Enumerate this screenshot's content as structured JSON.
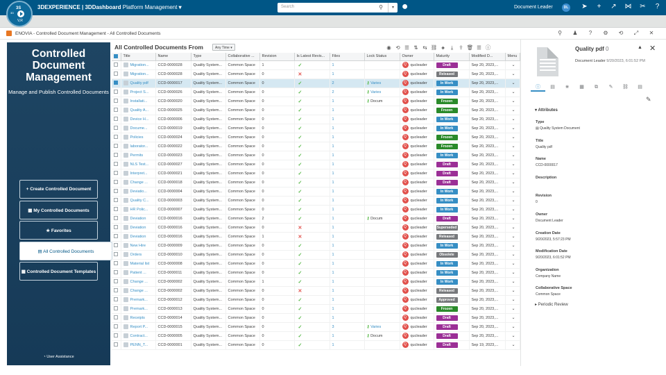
{
  "topbar": {
    "brand": "3DEXPERIENCE | 3DDashboard",
    "app": "Platform Management",
    "search_placeholder": "Search",
    "user": "Document Leader",
    "avatar_initials": "DL",
    "logo_version": "V,R",
    "logo_3d": "3D",
    "logo_ds": "3S",
    "icons": [
      "share-icon",
      "plus-icon",
      "forward-icon",
      "network-icon",
      "tools-icon",
      "help-icon"
    ],
    "icon_glyphs": [
      "➤",
      "+",
      "↗",
      "⋈",
      "✂",
      "?"
    ]
  },
  "panel": {
    "title": "ENOVIA - Controlled Document Management - All Controlled Documents",
    "tools": [
      "⚲",
      "♟",
      "?",
      "⚙",
      "⟲",
      "⤢",
      "✕"
    ]
  },
  "left": {
    "title": "Controlled Document Management",
    "subtitle": "Manage and Publish Controlled Documents",
    "buttons": [
      {
        "label": "+ Create Controlled Document"
      },
      {
        "label": "▦ My Controlled Documents"
      },
      {
        "label": "★ Favorites"
      },
      {
        "label": "▤ All Controlled Documents"
      },
      {
        "label": "▦ Controlled Document Templates"
      }
    ],
    "assistance": "◔ User Assistance"
  },
  "grid": {
    "title": "All Controlled Documents From",
    "filter": "Any Time ▾",
    "tools": [
      "◉",
      "⟲",
      "☰",
      "⇅",
      "⇆",
      "⛓",
      "⯌",
      "⤓",
      "⇪",
      "🗑",
      "☰",
      "ⓘ"
    ],
    "columns": [
      "",
      "Title",
      "Name",
      "Type",
      "Collaborative ...",
      "Revision",
      "Is Latest Revis...",
      "Files",
      "Lock Status",
      "Owner",
      "Maturity",
      "Modified D...",
      "Menu"
    ],
    "rows": [
      [
        "Migration...",
        "CCD-0000028",
        "Quality System...",
        "Common Space",
        "1",
        "y",
        "1",
        "",
        "qucleader",
        "Draft",
        "Sep 20, 2023,..."
      ],
      [
        "Migration...",
        "CCD-0000028",
        "Quality System...",
        "Common Space",
        "0",
        "n",
        "1",
        "",
        "qucleader",
        "Released",
        "Sep 20, 2023,..."
      ],
      [
        "Quality pdf",
        "CCD-0000017",
        "Quality System...",
        "Common Space",
        "0",
        "y",
        "2",
        "Varies",
        "qucleader",
        "In Work",
        "Sep 20, 2023,..."
      ],
      [
        "Project S...",
        "CCD-0000026",
        "Quality System...",
        "Common Space",
        "0",
        "y",
        "2",
        "Varies",
        "qucleader",
        "In Work",
        "Sep 20, 2023,..."
      ],
      [
        "Installati...",
        "CCD-0000020",
        "Quality System...",
        "Common Space",
        "0",
        "y",
        "1",
        "Docum",
        "qucleader",
        "Frozen",
        "Sep 20, 2023,..."
      ],
      [
        "Quality A...",
        "CCD-0000025",
        "Quality System...",
        "Common Space",
        "0",
        "y",
        "1",
        "",
        "qucleader",
        "Frozen",
        "Sep 20, 2023,..."
      ],
      [
        "Device H...",
        "CCD-0000006",
        "Quality System...",
        "Common Space",
        "0",
        "y",
        "1",
        "",
        "qucleader",
        "In Work",
        "Sep 20, 2023,..."
      ],
      [
        "Docume...",
        "CCD-0000019",
        "Quality System...",
        "Common Space",
        "0",
        "y",
        "1",
        "",
        "qucleader",
        "In Work",
        "Sep 20, 2023,..."
      ],
      [
        "Policies",
        "CCD-0000024",
        "Quality System...",
        "Common Space",
        "0",
        "y",
        "1",
        "",
        "qucleader",
        "Frozen",
        "Sep 20, 2023,..."
      ],
      [
        "laborator...",
        "CCD-0000022",
        "Quality System...",
        "Common Space",
        "0",
        "y",
        "1",
        "",
        "qucleader",
        "Frozen",
        "Sep 20, 2023,..."
      ],
      [
        "Permits",
        "CCD-0000023",
        "Quality System...",
        "Common Space",
        "0",
        "y",
        "1",
        "",
        "qucleader",
        "In Work",
        "Sep 20, 2023,..."
      ],
      [
        "NLS Test...",
        "CCD-0000027",
        "Quality System...",
        "Common Space",
        "0",
        "y",
        "1",
        "",
        "qucleader",
        "Draft",
        "Sep 20, 2023,..."
      ],
      [
        "Interpret...",
        "CCD-0000021",
        "Quality System...",
        "Common Space",
        "0",
        "y",
        "1",
        "",
        "qucleader",
        "Draft",
        "Sep 20, 2023,..."
      ],
      [
        "Change ...",
        "CCD-0000018",
        "Quality System...",
        "Common Space",
        "0",
        "y",
        "1",
        "",
        "qucleader",
        "Draft",
        "Sep 20, 2023,..."
      ],
      [
        "Deviatio...",
        "CCD-0000004",
        "Quality System...",
        "Common Space",
        "0",
        "y",
        "1",
        "",
        "qucleader",
        "In Work",
        "Sep 20, 2023,..."
      ],
      [
        "Quality C...",
        "CCD-0000003",
        "Quality System...",
        "Common Space",
        "0",
        "y",
        "1",
        "",
        "qucleader",
        "In Work",
        "Sep 20, 2023,..."
      ],
      [
        "HR Polic...",
        "CCD-0000007",
        "Quality System...",
        "Common Space",
        "0",
        "y",
        "1",
        "",
        "qucleader",
        "In Work",
        "Sep 20, 2023,..."
      ],
      [
        "Deviation",
        "CCD-0000016",
        "Quality System...",
        "Common Space",
        "2",
        "y",
        "1",
        "Docum",
        "qucleader",
        "Draft",
        "Sep 20, 2023,..."
      ],
      [
        "Deviation",
        "CCD-0000016",
        "Quality System...",
        "Common Space",
        "0",
        "n",
        "1",
        "",
        "qucleader",
        "Superseded",
        "Sep 20, 2023,..."
      ],
      [
        "Deviation",
        "CCD-0000016",
        "Quality System...",
        "Common Space",
        "1",
        "n",
        "1",
        "",
        "qucleader",
        "Released",
        "Sep 20, 2023,..."
      ],
      [
        "New Hire",
        "CCD-0000009",
        "Quality System...",
        "Common Space",
        "0",
        "y",
        "1",
        "",
        "qucleader",
        "In Work",
        "Sep 20, 2023,..."
      ],
      [
        "Orders",
        "CCD-0000010",
        "Quality System...",
        "Common Space",
        "0",
        "y",
        "1",
        "",
        "qucleader",
        "Obsolete",
        "Sep 20, 2023,..."
      ],
      [
        "Material list",
        "CCD-0000008",
        "Quality System...",
        "Common Space",
        "0",
        "y",
        "1",
        "",
        "qucleader",
        "In Work",
        "Sep 20, 2023,..."
      ],
      [
        "Patient ...",
        "CCD-0000011",
        "Quality System...",
        "Common Space",
        "0",
        "y",
        "1",
        "",
        "qucleader",
        "In Work",
        "Sep 20, 2023,..."
      ],
      [
        "Change ...",
        "CCD-0000002",
        "Quality System...",
        "Common Space",
        "1",
        "y",
        "1",
        "",
        "qucleader",
        "In Work",
        "Sep 20, 2023,..."
      ],
      [
        "Change ...",
        "CCD-0000002",
        "Quality System...",
        "Common Space",
        "0",
        "n",
        "1",
        "",
        "qucleader",
        "Released",
        "Sep 20, 2023,..."
      ],
      [
        "Premark...",
        "CCD-0000012",
        "Quality System...",
        "Common Space",
        "0",
        "y",
        "1",
        "",
        "qucleader",
        "Approved",
        "Sep 20, 2023,..."
      ],
      [
        "Premark...",
        "CCD-0000013",
        "Quality System...",
        "Common Space",
        "0",
        "y",
        "1",
        "",
        "qucleader",
        "Frozen",
        "Sep 20, 2023,..."
      ],
      [
        "Receipts",
        "CCD-0000014",
        "Quality System...",
        "Common Space",
        "0",
        "y",
        "1",
        "",
        "qucleader",
        "Draft",
        "Sep 20, 2023,..."
      ],
      [
        "Report P...",
        "CCD-0000015",
        "Quality System...",
        "Common Space",
        "0",
        "y",
        "3",
        "Varies",
        "qucleader",
        "Draft",
        "Sep 20, 2023,..."
      ],
      [
        "Contract...",
        "CCD-0000005",
        "Quality System...",
        "Common Space",
        "0",
        "y",
        "1",
        "Docum",
        "qucleader",
        "Draft",
        "Sep 20, 2023,..."
      ],
      [
        "PENN_T...",
        "CCD-0000001",
        "Quality System...",
        "Common Space",
        "0",
        "y",
        "1",
        "",
        "qucleader",
        "Draft",
        "Sep 19, 2023,..."
      ]
    ],
    "selected_row": 2,
    "maturity_colors": {
      "Draft": "#9b2f96",
      "Released": "#77797c",
      "In Work": "#368ec4",
      "Frozen": "#2a8a2a",
      "Superseded": "#77797c",
      "Obsolete": "#77797c",
      "Approved": "#77797c"
    }
  },
  "details": {
    "title": "Quality pdf",
    "revision": "0",
    "owner_line": "Document Leader",
    "date_line": "9/20/2023, 6:01:52 PM",
    "section": "▾  Attributes",
    "attributes": [
      {
        "k": "Type",
        "v": "▤ Quality System Document"
      },
      {
        "k": "Title",
        "v": "Quality pdf"
      },
      {
        "k": "Name",
        "v": "CCD-0000017"
      },
      {
        "k": "Description",
        "v": ""
      },
      {
        "k": "Revision",
        "v": "0"
      },
      {
        "k": "Owner",
        "v": "Document Leader"
      },
      {
        "k": "Creation Date",
        "v": "9/20/2023, 5:57:23 PM"
      },
      {
        "k": "Modification Date",
        "v": "9/20/2023, 6:01:52 PM"
      },
      {
        "k": "Organization",
        "v": "Company Name"
      },
      {
        "k": "Collaborative Space",
        "v": "Common Space"
      }
    ],
    "periodic": "▸  Periodic Review",
    "tabs": [
      "ⓘ",
      "▤",
      "⋇",
      "▦",
      "⧉",
      "✎",
      "⛓",
      "▤"
    ]
  }
}
